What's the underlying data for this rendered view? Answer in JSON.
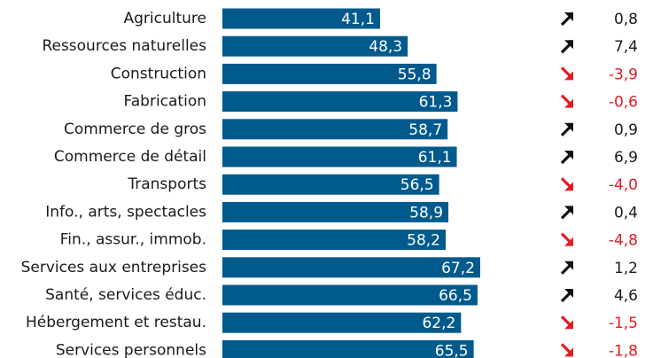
{
  "colors": {
    "bar": "#005a8c",
    "bar_text": "#ffffff",
    "up": "#111111",
    "down": "#e31b23",
    "label": "#1a1a1a"
  },
  "chart_data": {
    "type": "bar",
    "orientation": "horizontal",
    "categories": [
      "Agriculture",
      "Ressources naturelles",
      "Construction",
      "Fabrication",
      "Commerce de gros",
      "Commerce de détail",
      "Transports",
      "Info., arts, spectacles",
      "Fin., assur., immob.",
      "Services aux entreprises",
      "Santé, services éduc.",
      "Hébergement et restau.",
      "Services personnels"
    ],
    "values": [
      41.1,
      48.3,
      55.8,
      61.3,
      58.7,
      61.1,
      56.5,
      58.9,
      58.2,
      67.2,
      66.5,
      62.2,
      65.5
    ],
    "value_labels": [
      "41,1",
      "48,3",
      "55,8",
      "61,3",
      "58,7",
      "61,1",
      "56,5",
      "58,9",
      "58,2",
      "67,2",
      "66,5",
      "62,2",
      "65,5"
    ],
    "changes": [
      0.8,
      7.4,
      -3.9,
      -0.6,
      0.9,
      6.9,
      -4.0,
      0.4,
      -4.8,
      1.2,
      4.6,
      -1.5,
      -1.8
    ],
    "change_labels": [
      "0,8",
      "7,4",
      "-3,9",
      "-0,6",
      "0,9",
      "6,9",
      "-4,0",
      "0,4",
      "-4,8",
      "1,2",
      "4,6",
      "-1,5",
      "-1,8"
    ],
    "change_icons": [
      "arrow-up-icon",
      "arrow-up-icon",
      "arrow-down-icon",
      "arrow-down-icon",
      "arrow-up-icon",
      "arrow-up-icon",
      "arrow-down-icon",
      "arrow-up-icon",
      "arrow-down-icon",
      "arrow-up-icon",
      "arrow-up-icon",
      "arrow-down-icon",
      "arrow-down-icon"
    ],
    "xlim": [
      0,
      100
    ],
    "grid": false,
    "legend": "none"
  }
}
